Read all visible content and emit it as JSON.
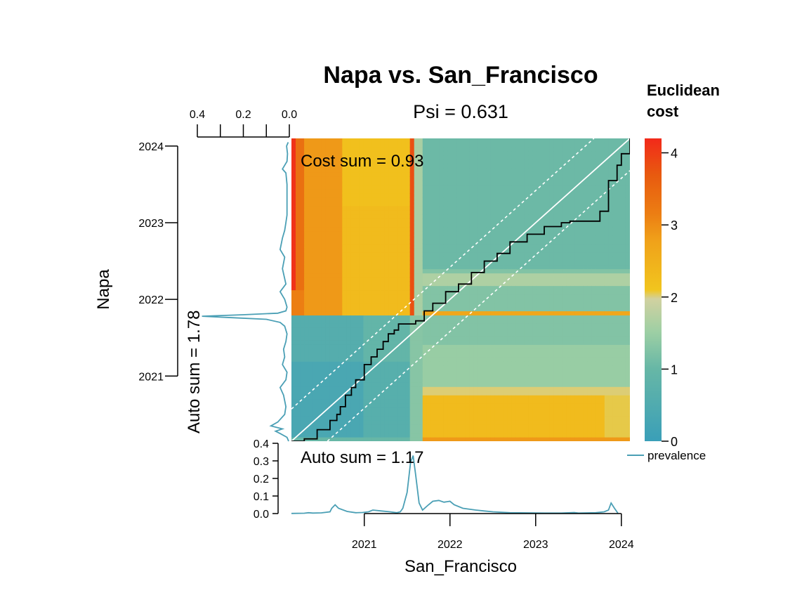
{
  "chart_data": {
    "type": "heatmap",
    "title": "Napa vs. San_Francisco",
    "subtitle": "Psi = 0.631",
    "xlabel": "San_Francisco",
    "ylabel": "Napa",
    "cost_sum_label": "Cost sum =  0.93",
    "auto_sum_x_label": "Auto sum =  1.17",
    "auto_sum_y_label": "Auto sum =  1.78",
    "legend_title_line1": "Euclidean",
    "legend_title_line2": "cost",
    "legend_series_label": "prevalence",
    "time_range": [
      2020.15,
      2024.1
    ],
    "x_ticks": [
      {
        "value": 2021,
        "label": "2021"
      },
      {
        "value": 2022,
        "label": "2022"
      },
      {
        "value": 2023,
        "label": "2023"
      },
      {
        "value": 2024,
        "label": "2024"
      }
    ],
    "y_ticks": [
      {
        "value": 2021,
        "label": "2021"
      },
      {
        "value": 2022,
        "label": "2022"
      },
      {
        "value": 2023,
        "label": "2023"
      },
      {
        "value": 2024,
        "label": "2024"
      }
    ],
    "prevalence_ticks": [
      {
        "value": 0.0,
        "label": "0.0"
      },
      {
        "value": 0.1,
        "label": "0.1"
      },
      {
        "value": 0.2,
        "label": "0.2"
      },
      {
        "value": 0.3,
        "label": "0.3"
      },
      {
        "value": 0.4,
        "label": "0.4"
      }
    ],
    "prevalence_top_ticks": [
      {
        "value": 0.4,
        "label": "0.4"
      },
      {
        "value": 0.2,
        "label": "0.2"
      },
      {
        "value": 0.0,
        "label": "0.0"
      }
    ],
    "prevalence_range": [
      0,
      0.4
    ],
    "cost_range": [
      0,
      4.2
    ],
    "legend_ticks": [
      {
        "value": 0,
        "label": "0"
      },
      {
        "value": 1,
        "label": "1"
      },
      {
        "value": 2,
        "label": "2"
      },
      {
        "value": 3,
        "label": "3"
      },
      {
        "value": 4,
        "label": "4"
      }
    ],
    "colors": {
      "ramp": [
        "#3a9fb8",
        "#67b7a6",
        "#9dcfa4",
        "#d1d1a0",
        "#f1c51e",
        "#f0a21a",
        "#ec7e13",
        "#e85a0f",
        "#f2291a"
      ],
      "series_line": "#4a9fb5",
      "path": "#000000",
      "diagonal": "#ffffff"
    },
    "san_francisco_series": {
      "x": [
        2020.15,
        2020.3,
        2020.35,
        2020.4,
        2020.5,
        2020.6,
        2020.62,
        2020.66,
        2020.7,
        2020.8,
        2020.9,
        2020.98,
        2021.05,
        2021.1,
        2021.2,
        2021.3,
        2021.38,
        2021.42,
        2021.45,
        2021.5,
        2021.54,
        2021.57,
        2021.6,
        2021.64,
        2021.68,
        2021.75,
        2021.8,
        2021.87,
        2021.93,
        2022.0,
        2022.05,
        2022.15,
        2022.3,
        2022.4,
        2022.5,
        2022.7,
        2022.9,
        2023.1,
        2023.3,
        2023.45,
        2023.5,
        2023.6,
        2023.7,
        2023.8,
        2023.85,
        2023.88,
        2023.92,
        2023.96
      ],
      "y": [
        0.001,
        0.002,
        0.005,
        0.003,
        0.004,
        0.01,
        0.03,
        0.05,
        0.03,
        0.012,
        0.005,
        0.006,
        0.01,
        0.02,
        0.015,
        0.01,
        0.005,
        0.01,
        0.03,
        0.12,
        0.29,
        0.33,
        0.22,
        0.06,
        0.02,
        0.05,
        0.07,
        0.075,
        0.065,
        0.07,
        0.05,
        0.03,
        0.02,
        0.015,
        0.01,
        0.005,
        0.004,
        0.003,
        0.003,
        0.006,
        0.003,
        0.004,
        0.005,
        0.01,
        0.02,
        0.06,
        0.03,
        0.002
      ]
    },
    "napa_series": {
      "x": [
        2020.15,
        2020.2,
        2020.25,
        2020.28,
        2020.31,
        2020.35,
        2020.4,
        2020.5,
        2020.6,
        2020.75,
        2020.85,
        2020.95,
        2021.05,
        2021.15,
        2021.25,
        2021.35,
        2021.45,
        2021.55,
        2021.65,
        2021.7,
        2021.74,
        2021.76,
        2021.78,
        2021.8,
        2021.82,
        2021.85,
        2021.9,
        2022.0,
        2022.1,
        2022.2,
        2022.4,
        2022.55,
        2022.65,
        2022.8,
        2022.9,
        2023.0,
        2023.1,
        2023.3,
        2023.5,
        2023.65,
        2023.7,
        2023.8,
        2023.9,
        2024.0,
        2024.05
      ],
      "y": [
        0.003,
        0.01,
        0.04,
        0.06,
        0.03,
        0.08,
        0.05,
        0.02,
        0.015,
        0.025,
        0.04,
        0.015,
        0.01,
        0.03,
        0.02,
        0.025,
        0.015,
        0.01,
        0.02,
        0.04,
        0.1,
        0.24,
        0.38,
        0.2,
        0.05,
        0.015,
        0.01,
        0.02,
        0.04,
        0.015,
        0.03,
        0.02,
        0.04,
        0.03,
        0.02,
        0.015,
        0.01,
        0.01,
        0.01,
        0.015,
        0.03,
        0.01,
        0.008,
        0.012,
        0.005
      ]
    },
    "warping_path": {
      "x": [
        2020.15,
        2020.3,
        2020.45,
        2020.6,
        2020.68,
        2020.72,
        2020.78,
        2020.85,
        2020.9,
        2021.0,
        2021.08,
        2021.15,
        2021.22,
        2021.28,
        2021.35,
        2021.4,
        2021.45,
        2021.5,
        2021.55,
        2021.6,
        2021.7,
        2021.8,
        2021.95,
        2022.1,
        2022.25,
        2022.4,
        2022.55,
        2022.7,
        2022.9,
        2023.1,
        2023.3,
        2023.4,
        2023.5,
        2023.6,
        2023.62,
        2023.75,
        2023.85,
        2023.95,
        2024.0,
        2024.05,
        2024.1
      ],
      "y": [
        2020.15,
        2020.18,
        2020.3,
        2020.42,
        2020.5,
        2020.6,
        2020.75,
        2020.85,
        2020.95,
        2021.15,
        2021.25,
        2021.35,
        2021.45,
        2021.55,
        2021.6,
        2021.68,
        2021.68,
        2021.68,
        2021.68,
        2021.72,
        2021.85,
        2021.95,
        2022.1,
        2022.2,
        2022.35,
        2022.5,
        2022.6,
        2022.75,
        2022.85,
        2022.95,
        2023.0,
        2023.02,
        2023.02,
        2023.02,
        2023.02,
        2023.15,
        2023.55,
        2023.75,
        2023.9,
        2023.9,
        2024.1
      ]
    }
  }
}
